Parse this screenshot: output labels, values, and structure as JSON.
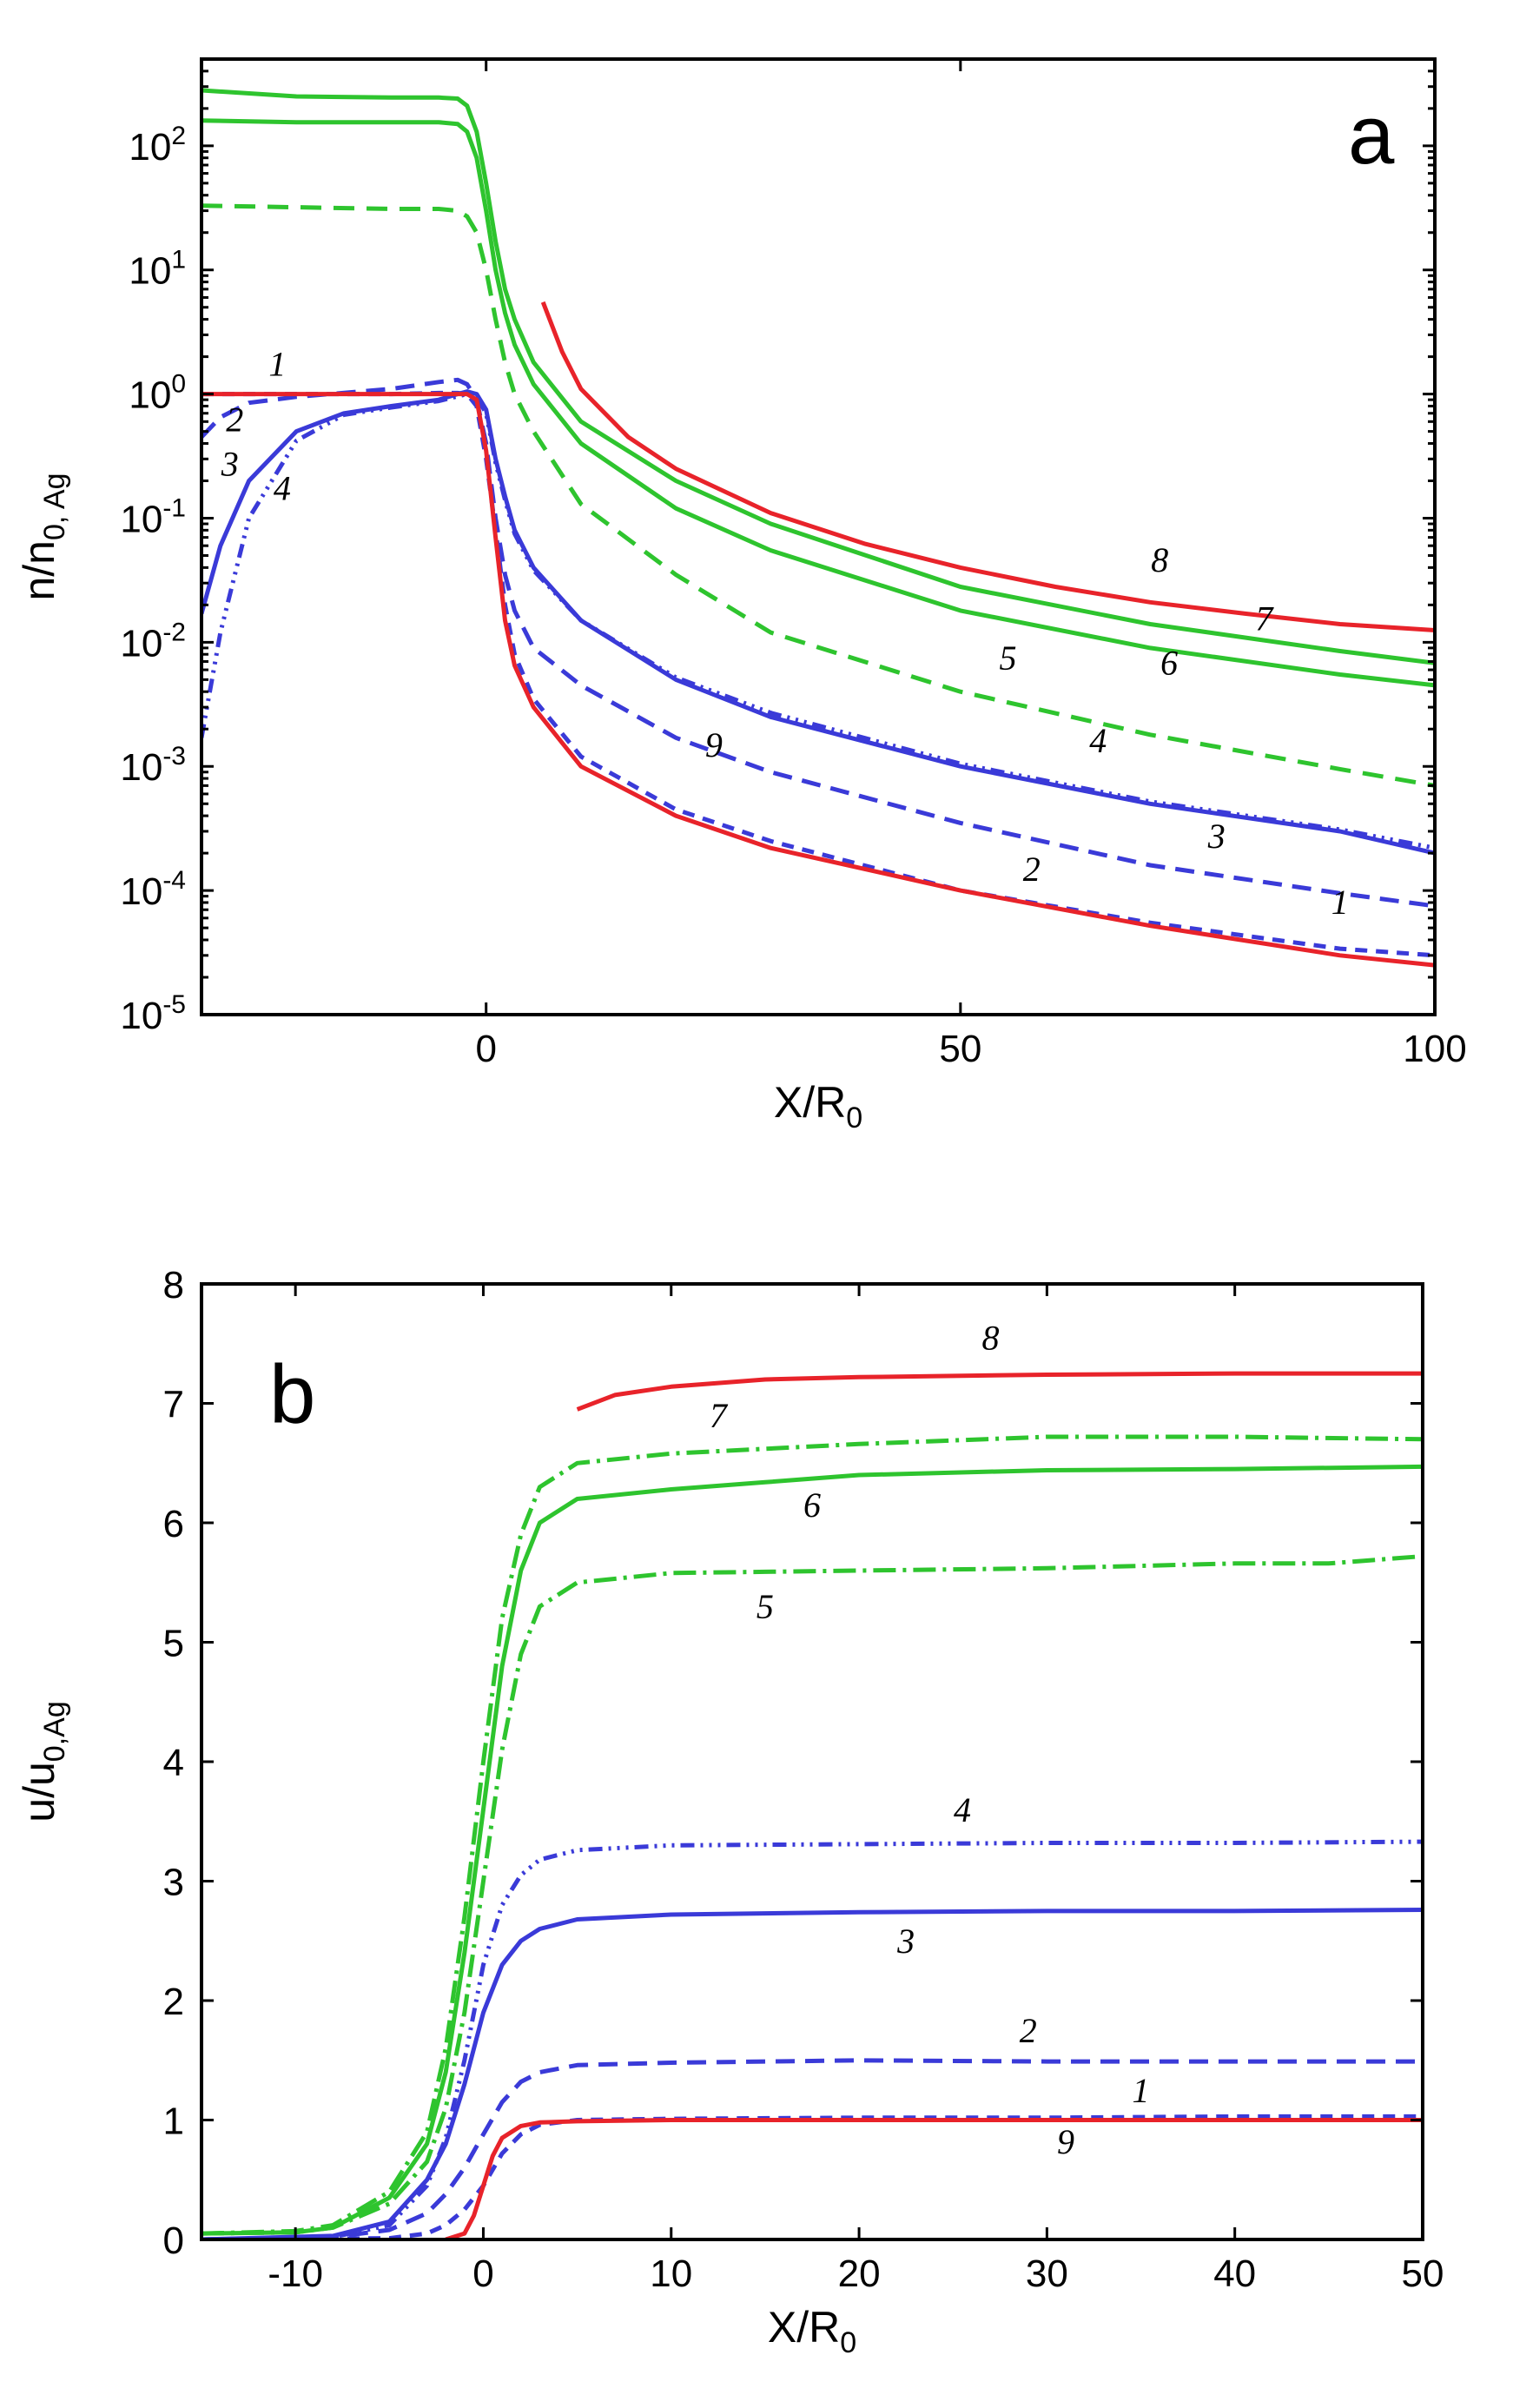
{
  "colors": {
    "red": "#e8232a",
    "green": "#2ec42e",
    "blue": "#3a3ad8"
  },
  "chart_data": [
    {
      "panel": "a",
      "type": "line",
      "title": "",
      "xlabel_main": "X/R",
      "xlabel_sub": "0",
      "ylabel_main": "n/n",
      "ylabel_sub": "0, Ag",
      "xlim": [
        -30,
        100
      ],
      "ylim": [
        1e-05,
        500
      ],
      "yscale": "log",
      "x_ticks": [
        0,
        50,
        100
      ],
      "x_tick_labels": [
        "0",
        "50",
        "100"
      ],
      "y_ticks": [
        1e-05,
        0.0001,
        0.001,
        0.01,
        0.1,
        1,
        10,
        100
      ],
      "y_tick_labels": [
        {
          "base": "10",
          "exp": "-5"
        },
        {
          "base": "10",
          "exp": "-4"
        },
        {
          "base": "10",
          "exp": "-3"
        },
        {
          "base": "10",
          "exp": "-2"
        },
        {
          "base": "10",
          "exp": "-1"
        },
        {
          "base": "10",
          "exp": "0"
        },
        {
          "base": "10",
          "exp": "1"
        },
        {
          "base": "10",
          "exp": "2"
        }
      ],
      "series": [
        {
          "name": "1",
          "color": "blue",
          "dash": "14,10",
          "x": [
            -30,
            -20,
            -10,
            -5,
            -3,
            -2,
            -1,
            0,
            1,
            2,
            3,
            5,
            10,
            20,
            30,
            50,
            70,
            90,
            100
          ],
          "y": [
            1,
            1,
            1,
            1.02,
            1.02,
            1,
            0.8,
            0.3,
            0.08,
            0.02,
            0.008,
            0.0035,
            0.0012,
            0.00045,
            0.00025,
            0.0001,
            5.5e-05,
            3.4e-05,
            3e-05
          ]
        },
        {
          "name": "2",
          "color": "blue",
          "dash": "22,12",
          "x": [
            -30,
            -28,
            -25,
            -20,
            -10,
            -5,
            -3,
            -2,
            -1,
            0,
            1,
            2,
            3,
            5,
            10,
            20,
            30,
            50,
            70,
            90,
            100
          ],
          "y": [
            0.45,
            0.65,
            0.85,
            0.95,
            1.1,
            1.25,
            1.3,
            1.2,
            0.9,
            0.4,
            0.1,
            0.035,
            0.018,
            0.009,
            0.0045,
            0.0017,
            0.0009,
            0.00035,
            0.00016,
            9.5e-05,
            7.5e-05
          ]
        },
        {
          "name": "3",
          "color": "blue",
          "dash": "",
          "x": [
            -30,
            -28,
            -25,
            -20,
            -15,
            -10,
            -5,
            -3,
            -2,
            -1,
            0,
            1,
            2,
            3,
            5,
            10,
            20,
            30,
            50,
            70,
            90,
            100
          ],
          "y": [
            0.017,
            0.06,
            0.2,
            0.5,
            0.7,
            0.8,
            0.9,
            1,
            1.05,
            1,
            0.75,
            0.3,
            0.15,
            0.08,
            0.04,
            0.015,
            0.005,
            0.0025,
            0.001,
            0.0005,
            0.0003,
            0.0002
          ]
        },
        {
          "name": "4",
          "color": "blue",
          "dash": "16,7,3,7,3,7,3,7",
          "x": [
            -30,
            -28,
            -25,
            -20,
            -15,
            -10,
            -5,
            -3,
            -2,
            -1,
            0,
            1,
            2,
            3,
            5,
            10,
            20,
            30,
            50,
            70,
            90,
            100
          ],
          "y": [
            0.0017,
            0.012,
            0.1,
            0.42,
            0.68,
            0.78,
            0.88,
            0.96,
            1,
            0.95,
            0.7,
            0.28,
            0.14,
            0.075,
            0.038,
            0.015,
            0.0052,
            0.0027,
            0.00105,
            0.00052,
            0.00031,
            0.00022
          ]
        },
        {
          "name": "5",
          "color": "green",
          "dash": "24,14",
          "x": [
            -30,
            -20,
            -10,
            -5,
            -3,
            -2,
            -1,
            0,
            1,
            2,
            3,
            5,
            10,
            20,
            30,
            50,
            70,
            90,
            100
          ],
          "y": [
            33,
            32,
            31,
            31,
            30,
            27,
            20,
            10,
            4,
            1.8,
            1,
            0.5,
            0.13,
            0.035,
            0.012,
            0.004,
            0.0018,
            0.00095,
            0.0007
          ]
        },
        {
          "name": "6",
          "color": "green",
          "dash": "",
          "x": [
            -30,
            -20,
            -10,
            -5,
            -3,
            -2,
            -1,
            0,
            1,
            2,
            3,
            5,
            10,
            20,
            30,
            50,
            70,
            90,
            100
          ],
          "y": [
            160,
            155,
            155,
            155,
            150,
            130,
            80,
            30,
            10,
            4.5,
            2.5,
            1.2,
            0.4,
            0.12,
            0.055,
            0.018,
            0.009,
            0.0055,
            0.0045
          ]
        },
        {
          "name": "7",
          "color": "green",
          "dash": "",
          "x": [
            -30,
            -20,
            -10,
            -5,
            -3,
            -2,
            -1,
            0,
            1,
            2,
            3,
            5,
            10,
            20,
            30,
            50,
            70,
            90,
            100
          ],
          "y": [
            280,
            250,
            245,
            245,
            240,
            210,
            130,
            50,
            17,
            7,
            4,
            1.8,
            0.6,
            0.2,
            0.09,
            0.028,
            0.014,
            0.0085,
            0.0068
          ]
        },
        {
          "name": "8",
          "color": "red",
          "dash": "",
          "x": [
            6,
            8,
            10,
            15,
            20,
            30,
            40,
            50,
            60,
            70,
            80,
            90,
            100
          ],
          "y": [
            5.5,
            2.2,
            1.1,
            0.45,
            0.25,
            0.11,
            0.062,
            0.04,
            0.028,
            0.021,
            0.017,
            0.014,
            0.0125
          ]
        },
        {
          "name": "9",
          "color": "red",
          "dash": "",
          "x": [
            -30,
            -20,
            -10,
            -5,
            -3,
            -2,
            -1,
            0,
            1,
            2,
            3,
            5,
            10,
            20,
            30,
            50,
            70,
            90,
            100
          ],
          "y": [
            1,
            1,
            1,
            1,
            1,
            1,
            0.9,
            0.35,
            0.07,
            0.015,
            0.0065,
            0.003,
            0.001,
            0.0004,
            0.00022,
            0.0001,
            5.2e-05,
            3e-05,
            2.5e-05
          ]
        }
      ],
      "labels": [
        {
          "text": "1",
          "x": -22,
          "y": 1.4
        },
        {
          "text": "2",
          "x": -26.5,
          "y": 0.5
        },
        {
          "text": "3",
          "x": -27,
          "y": 0.22
        },
        {
          "text": "4",
          "x": -21.5,
          "y": 0.14
        },
        {
          "text": "5",
          "x": 55,
          "y": 0.006
        },
        {
          "text": "6",
          "x": 72,
          "y": 0.0055
        },
        {
          "text": "7",
          "x": 82,
          "y": 0.0125
        },
        {
          "text": "8",
          "x": 71,
          "y": 0.037
        },
        {
          "text": "9",
          "x": 24,
          "y": 0.0012
        },
        {
          "text": "1",
          "x": 90,
          "y": 6.5e-05
        },
        {
          "text": "2",
          "x": 57.5,
          "y": 0.00012
        },
        {
          "text": "3",
          "x": 77,
          "y": 0.00022
        },
        {
          "text": "4",
          "x": 64.5,
          "y": 0.0013
        }
      ],
      "panel_letter": "a"
    },
    {
      "panel": "b",
      "type": "line",
      "title": "",
      "xlabel_main": "X/R",
      "xlabel_sub": "0",
      "ylabel_main": "u/u",
      "ylabel_sub": "0,Ag",
      "xlim": [
        -15,
        50
      ],
      "ylim": [
        0,
        8
      ],
      "x_ticks": [
        -10,
        0,
        10,
        20,
        30,
        40,
        50
      ],
      "x_tick_labels": [
        "-10",
        "0",
        "10",
        "20",
        "30",
        "40",
        "50"
      ],
      "y_ticks": [
        0,
        1,
        2,
        3,
        4,
        5,
        6,
        7,
        8
      ],
      "y_tick_labels": [
        "0",
        "1",
        "2",
        "3",
        "4",
        "5",
        "6",
        "7",
        "8"
      ],
      "series": [
        {
          "name": "1",
          "color": "blue",
          "dash": "14,10",
          "x": [
            -15,
            -5,
            -3,
            -2,
            -1,
            0,
            1,
            2,
            3,
            5,
            10,
            20,
            30,
            40,
            50
          ],
          "y": [
            0,
            0.01,
            0.05,
            0.12,
            0.25,
            0.45,
            0.72,
            0.88,
            0.96,
            1,
            1.01,
            1.02,
            1.02,
            1.03,
            1.03
          ]
        },
        {
          "name": "2",
          "color": "blue",
          "dash": "22,12",
          "x": [
            -15,
            -8,
            -5,
            -3,
            -2,
            -1,
            0,
            1,
            2,
            3,
            5,
            10,
            20,
            30,
            40,
            50
          ],
          "y": [
            0,
            0.02,
            0.08,
            0.22,
            0.38,
            0.6,
            0.88,
            1.15,
            1.32,
            1.4,
            1.46,
            1.48,
            1.5,
            1.49,
            1.49,
            1.49
          ]
        },
        {
          "name": "3",
          "color": "blue",
          "dash": "",
          "x": [
            -15,
            -8,
            -5,
            -3,
            -2,
            -1,
            0,
            1,
            2,
            3,
            5,
            10,
            20,
            30,
            40,
            50
          ],
          "y": [
            0,
            0.03,
            0.15,
            0.5,
            0.8,
            1.3,
            1.9,
            2.3,
            2.5,
            2.6,
            2.68,
            2.72,
            2.74,
            2.75,
            2.75,
            2.76
          ]
        },
        {
          "name": "4",
          "color": "blue",
          "dash": "16,7,3,7,3,7,3,7",
          "x": [
            -15,
            -8,
            -5,
            -3,
            -2,
            -1,
            0,
            1,
            2,
            3,
            5,
            10,
            20,
            30,
            40,
            50
          ],
          "y": [
            0,
            0.02,
            0.12,
            0.45,
            0.85,
            1.5,
            2.3,
            2.8,
            3.05,
            3.18,
            3.26,
            3.3,
            3.31,
            3.32,
            3.32,
            3.33
          ]
        },
        {
          "name": "5",
          "color": "green",
          "dash": "26,8,4,8",
          "x": [
            -15,
            -10,
            -8,
            -5,
            -3,
            -2,
            -1,
            0,
            1,
            2,
            3,
            5,
            10,
            15,
            20,
            30,
            40,
            45,
            50
          ],
          "y": [
            0.05,
            0.06,
            0.1,
            0.3,
            0.65,
            1.1,
            1.9,
            3,
            4.1,
            4.9,
            5.3,
            5.5,
            5.58,
            5.59,
            5.6,
            5.62,
            5.66,
            5.66,
            5.72
          ]
        },
        {
          "name": "6",
          "color": "green",
          "dash": "",
          "x": [
            -15,
            -10,
            -8,
            -5,
            -3,
            -2,
            -1,
            0,
            1,
            2,
            3,
            5,
            10,
            15,
            20,
            30,
            40,
            50
          ],
          "y": [
            0.05,
            0.06,
            0.1,
            0.35,
            0.8,
            1.4,
            2.4,
            3.6,
            4.8,
            5.6,
            6,
            6.2,
            6.28,
            6.34,
            6.4,
            6.44,
            6.45,
            6.47
          ]
        },
        {
          "name": "7",
          "color": "green",
          "dash": "26,8,4,8",
          "x": [
            -15,
            -10,
            -8,
            -5,
            -3,
            -2,
            -1,
            0,
            1,
            2,
            3,
            5,
            10,
            15,
            20,
            30,
            40,
            50
          ],
          "y": [
            0.05,
            0.07,
            0.12,
            0.4,
            0.9,
            1.6,
            2.7,
            4,
            5.2,
            5.9,
            6.3,
            6.5,
            6.58,
            6.62,
            6.66,
            6.72,
            6.72,
            6.7
          ]
        },
        {
          "name": "8",
          "color": "red",
          "dash": "",
          "x": [
            5,
            7,
            10,
            15,
            20,
            30,
            40,
            50
          ],
          "y": [
            6.95,
            7.07,
            7.14,
            7.2,
            7.22,
            7.24,
            7.25,
            7.25
          ]
        },
        {
          "name": "9",
          "color": "red",
          "dash": "",
          "x": [
            -2,
            -1,
            -0.5,
            0,
            0.5,
            1,
            2,
            3,
            5,
            10,
            20,
            30,
            40,
            50
          ],
          "y": [
            0,
            0.05,
            0.2,
            0.45,
            0.7,
            0.85,
            0.95,
            0.98,
            0.99,
            1,
            1,
            1,
            1,
            1
          ]
        }
      ],
      "labels": [
        {
          "text": "8",
          "x": 27,
          "y": 7.45
        },
        {
          "text": "7",
          "x": 12.5,
          "y": 6.8
        },
        {
          "text": "6",
          "x": 17.5,
          "y": 6.05
        },
        {
          "text": "5",
          "x": 15,
          "y": 5.2
        },
        {
          "text": "4",
          "x": 25.5,
          "y": 3.5
        },
        {
          "text": "3",
          "x": 22.5,
          "y": 2.4
        },
        {
          "text": "2",
          "x": 29,
          "y": 1.65
        },
        {
          "text": "1",
          "x": 35,
          "y": 1.15
        },
        {
          "text": "9",
          "x": 31,
          "y": 0.72
        }
      ],
      "panel_letter": "b"
    }
  ]
}
